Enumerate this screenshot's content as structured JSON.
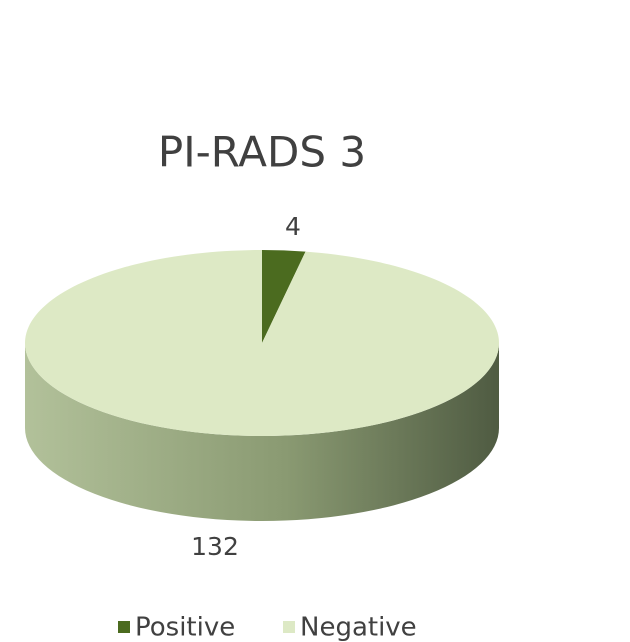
{
  "chart_data": {
    "type": "pie",
    "title": "PI-RADS 3",
    "categories": [
      "Positive",
      "Negative"
    ],
    "values": [
      4,
      132
    ],
    "colors": [
      "#4b6b1f",
      "#dde9c5"
    ],
    "legend": "bottom"
  }
}
